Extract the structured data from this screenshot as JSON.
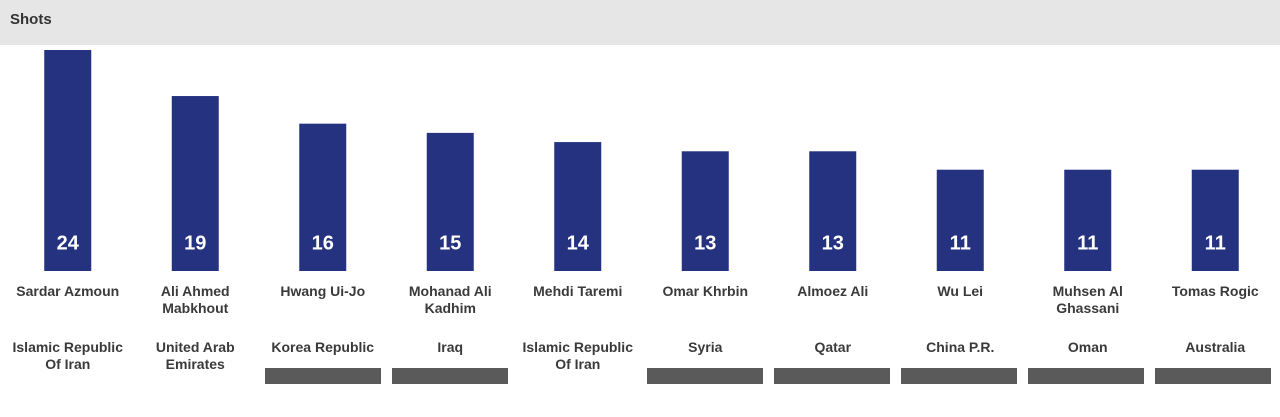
{
  "chart_data": {
    "type": "bar",
    "title": "Shots",
    "categories": [
      "Sardar Azmoun",
      "Ali Ahmed Mabkhout",
      "Hwang Ui-Jo",
      "Mohanad Ali Kadhim",
      "Mehdi Taremi",
      "Omar Khrbin",
      "Almoez Ali",
      "Wu Lei",
      "Muhsen Al Ghassani",
      "Tomas Rogic"
    ],
    "countries": [
      "Islamic Republic Of Iran",
      "United Arab Emirates",
      "Korea Republic",
      "Iraq",
      "Islamic Republic Of Iran",
      "Syria",
      "Qatar",
      "China P.R.",
      "Oman",
      "Australia"
    ],
    "values": [
      24,
      19,
      16,
      15,
      14,
      13,
      13,
      11,
      11,
      11
    ],
    "color": "#253280"
  }
}
